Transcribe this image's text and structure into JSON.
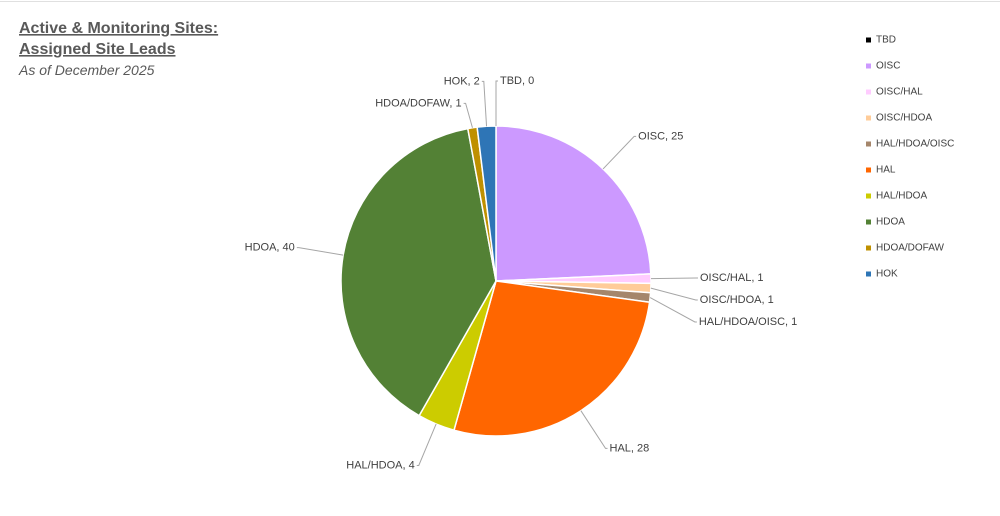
{
  "chart_data": {
    "type": "pie",
    "title": [
      "Active & Monitoring Sites:",
      "Assigned Site Leads"
    ],
    "subtitle": "As of December 2025",
    "categories": [
      "TBD",
      "OISC",
      "OISC/HAL",
      "OISC/HDOA",
      "HAL/HDOA/OISC",
      "HAL",
      "HAL/HDOA",
      "HDOA",
      "HDOA/DOFAW",
      "HOK"
    ],
    "values": [
      0,
      25,
      1,
      1,
      1,
      28,
      4,
      40,
      1,
      2
    ],
    "value_labels": [
      "TBD, 0",
      "OISC, 25",
      "OISC/HAL, 1",
      "OISC/HDOA, 1",
      "HAL/HDOA/OISC, 1",
      "HAL, 28",
      "HAL/HDOA, 4",
      "HDOA, 40",
      "HDOA/DOFAW, 1",
      "HOK, 2"
    ],
    "colors": [
      "#000000",
      "#cc99ff",
      "#ffccff",
      "#ffcc99",
      "#a5866b",
      "#ff6600",
      "#cccc00",
      "#538135",
      "#bf9000",
      "#2e75b6"
    ],
    "legend": "right"
  }
}
